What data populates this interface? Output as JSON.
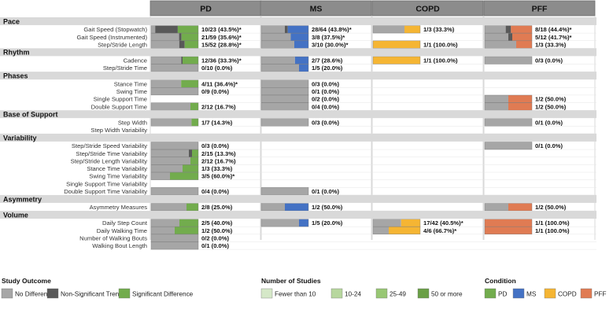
{
  "chart_data": {
    "type": "table",
    "conditions": [
      "PD",
      "MS",
      "COPD",
      "PFF"
    ],
    "categories": [
      {
        "name": "Pace",
        "rows": [
          "Gait Speed (Stopwatch)",
          "Gait Speed (Instrumented)",
          "Step/Stride Length"
        ]
      },
      {
        "name": "Rhythm",
        "rows": [
          "Cadence",
          "Step/Stride Time"
        ]
      },
      {
        "name": "Phases",
        "rows": [
          "Stance Time",
          "Swing Time",
          "Single Support Time",
          "Double Support Time"
        ]
      },
      {
        "name": "Base of Support",
        "rows": [
          "Step Width",
          "Step Width Variability"
        ]
      },
      {
        "name": "Variability",
        "rows": [
          "Step/Stride Speed Variability",
          "Step/Stride Time Variability",
          "Step/Stride Length Variability",
          "Stance Time  Variability",
          "Swing Time  Variability",
          "Single Support Time  Variability",
          "Double Support Time  Variability"
        ]
      },
      {
        "name": "Asymmetry",
        "rows": [
          "Asymmetry Measures"
        ]
      },
      {
        "name": "Volume",
        "rows": [
          "Daily Step Count",
          "Daily Walking Time",
          "Number of Walking Bouts",
          "Walking Bout Length"
        ]
      }
    ],
    "cells": [
      [
        [
          10,
          23,
          43.5,
          "*",
          11
        ],
        [
          28,
          64,
          43.8,
          "*",
          4
        ],
        [
          1,
          3,
          33.3,
          "",
          0
        ],
        [
          8,
          18,
          44.4,
          "*",
          2
        ]
      ],
      [
        [
          21,
          59,
          35.6,
          "*",
          3
        ],
        [
          3,
          8,
          37.5,
          "*",
          0
        ],
        null,
        [
          5,
          12,
          41.7,
          "*",
          1
        ]
      ],
      [
        [
          15,
          52,
          28.8,
          "*",
          6
        ],
        [
          3,
          10,
          30.0,
          "*",
          0
        ],
        [
          1,
          1,
          100.0,
          "",
          0
        ],
        [
          1,
          3,
          33.3,
          "",
          0
        ]
      ],
      [
        [
          12,
          36,
          33.3,
          "*",
          1
        ],
        [
          2,
          7,
          28.6,
          "",
          0
        ],
        [
          1,
          1,
          100.0,
          "",
          0
        ],
        [
          0,
          3,
          0.0,
          "",
          0
        ]
      ],
      [
        [
          0,
          10,
          0.0,
          "",
          0
        ],
        [
          1,
          5,
          20.0,
          "",
          0
        ],
        null,
        null
      ],
      [
        [
          4,
          11,
          36.4,
          "*",
          0
        ],
        [
          0,
          3,
          0.0,
          "",
          0
        ],
        null,
        null
      ],
      [
        [
          0,
          9,
          0.0,
          "",
          0
        ],
        [
          0,
          1,
          0.0,
          "",
          0
        ],
        null,
        null
      ],
      [
        null,
        [
          0,
          2,
          0.0,
          "",
          0
        ],
        null,
        [
          1,
          2,
          50.0,
          "",
          0
        ]
      ],
      [
        [
          2,
          12,
          16.7,
          "",
          0
        ],
        [
          0,
          4,
          0.0,
          "",
          0
        ],
        null,
        [
          1,
          2,
          50.0,
          "",
          0
        ]
      ],
      [
        [
          1,
          7,
          14.3,
          "",
          0
        ],
        [
          0,
          3,
          0.0,
          "",
          0
        ],
        null,
        [
          0,
          1,
          0.0,
          "",
          0
        ]
      ],
      [
        null,
        null,
        null,
        null
      ],
      [
        [
          0,
          3,
          0.0,
          "",
          0
        ],
        null,
        null,
        [
          0,
          1,
          0.0,
          "",
          0
        ]
      ],
      [
        [
          2,
          15,
          13.3,
          "",
          1
        ],
        null,
        null,
        null
      ],
      [
        [
          2,
          12,
          16.7,
          "",
          0
        ],
        null,
        null,
        null
      ],
      [
        [
          1,
          3,
          33.3,
          "",
          0
        ],
        null,
        null,
        null
      ],
      [
        [
          3,
          5,
          60.0,
          "*",
          0
        ],
        null,
        null,
        null
      ],
      [
        null,
        null,
        null,
        null
      ],
      [
        [
          0,
          4,
          0.0,
          "",
          0
        ],
        [
          0,
          1,
          0.0,
          "",
          0
        ],
        null,
        null
      ],
      [
        [
          2,
          8,
          25.0,
          "",
          0
        ],
        [
          1,
          2,
          50.0,
          "",
          0
        ],
        null,
        [
          1,
          2,
          50.0,
          "",
          0
        ]
      ],
      [
        [
          2,
          5,
          40.0,
          "",
          0
        ],
        [
          1,
          5,
          20.0,
          "",
          0
        ],
        [
          17,
          42,
          40.5,
          "*",
          0
        ],
        [
          1,
          1,
          100.0,
          "",
          0
        ]
      ],
      [
        [
          1,
          2,
          50.0,
          "",
          0
        ],
        null,
        [
          4,
          6,
          66.7,
          "*",
          0
        ],
        [
          1,
          1,
          100.0,
          "",
          0
        ]
      ],
      [
        [
          0,
          2,
          0.0,
          "",
          0
        ],
        null,
        null,
        null
      ],
      [
        [
          0,
          1,
          0.0,
          "",
          0
        ],
        null,
        null,
        null
      ]
    ],
    "legends": {
      "outcome": {
        "title": "Study Outcome",
        "items": [
          "No Difference",
          "Non-Significant Trend",
          "Significant Difference"
        ]
      },
      "studies": {
        "title": "Number of Studies",
        "items": [
          "Fewer than 10",
          "10-24",
          "25-49",
          "50 or more"
        ]
      },
      "condition": {
        "title": "Condition",
        "items": [
          "PD",
          "MS",
          "COPD",
          "PFF"
        ]
      }
    },
    "colors": {
      "header_bg": "#8c8c8c",
      "category_bg": "#d9d9d9",
      "no_difference": "#a6a6a6",
      "non_significant": "#595959",
      "PD": "#72ac4d",
      "MS": "#4472c4",
      "COPD": "#f5b533",
      "PFF": "#e07b53",
      "PD_light": [
        "#d5e8c8",
        "#b7d79e",
        "#98c774",
        "#6a9f46"
      ],
      "MS_light": [
        "#c8d7ef",
        "#a9c1e6"
      ],
      "COPD_light": [
        "#fbe5b4"
      ],
      "PFF_light": [
        "#f5cdb8"
      ]
    }
  }
}
